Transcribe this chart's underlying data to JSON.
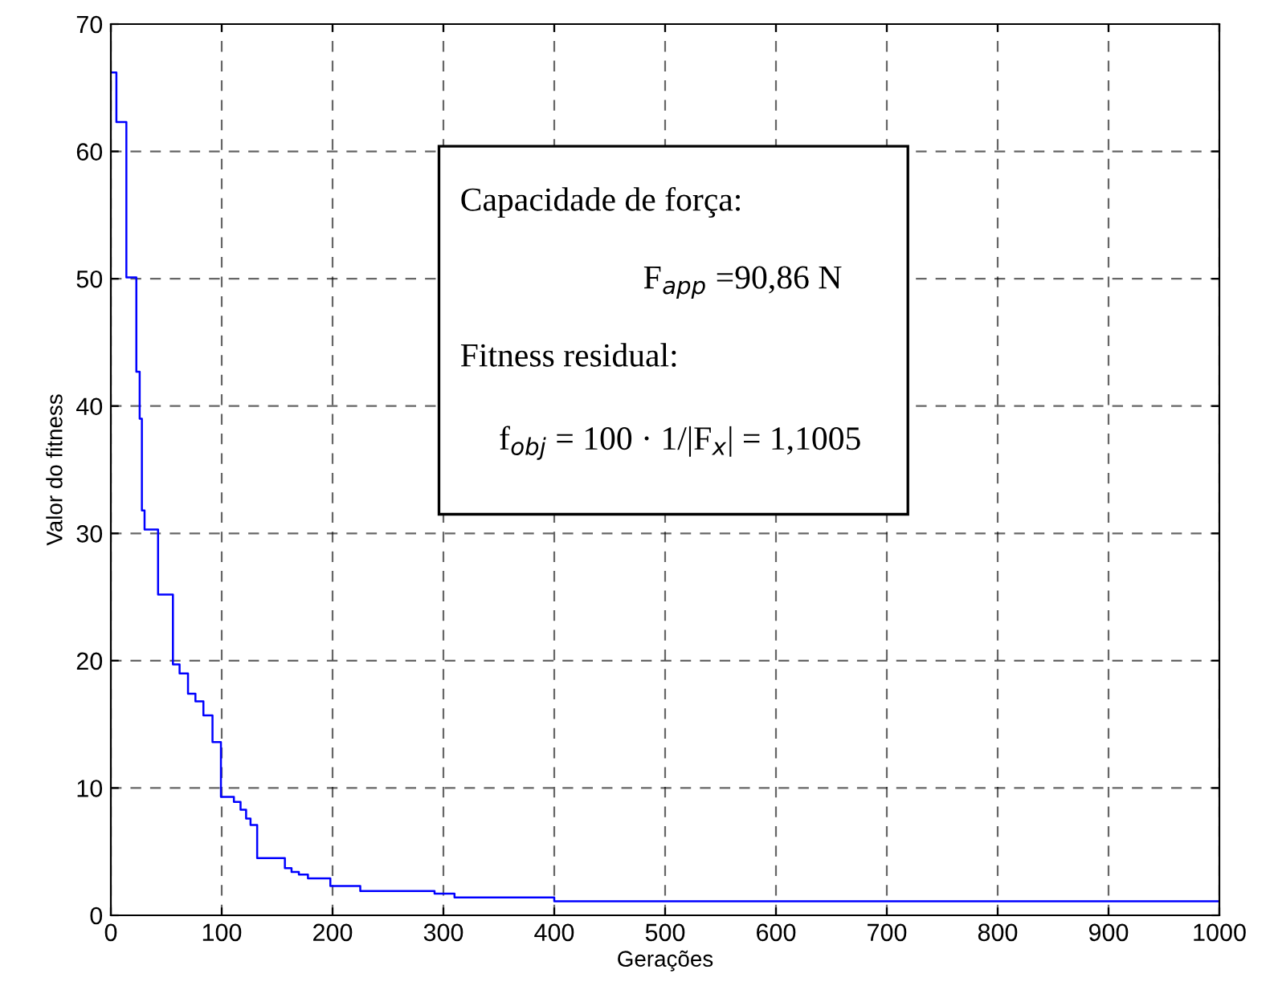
{
  "chart_data": {
    "type": "step",
    "xlabel": "Gerações",
    "ylabel": "Valor do fitness",
    "xlim": [
      0,
      1000
    ],
    "ylim": [
      0,
      70
    ],
    "xticks": [
      0,
      100,
      200,
      300,
      400,
      500,
      600,
      700,
      800,
      900,
      1000
    ],
    "yticks": [
      0,
      10,
      20,
      30,
      40,
      50,
      60,
      70
    ],
    "grid": true,
    "line_style": "solid",
    "marker": "none",
    "series": [
      {
        "color": "#0000ff",
        "x": [
          1.5,
          5,
          11,
          14,
          22,
          23,
          26,
          28,
          30.4,
          41.6,
          42.6,
          56,
          62,
          69.6,
          76.3,
          83.5,
          91.7,
          99.3,
          111,
          117,
          122,
          126,
          132,
          157,
          163,
          169.6,
          177.8,
          198,
          225,
          292,
          310,
          400,
          1000
        ],
        "values": [
          66.2,
          62.3,
          62.3,
          50.1,
          50.1,
          42.7,
          39,
          31.8,
          30.3,
          30.3,
          25.2,
          19.7,
          19.0,
          17.4,
          16.8,
          15.7,
          13.6,
          9.3,
          8.9,
          8.3,
          7.6,
          7.1,
          4.5,
          3.7,
          3.4,
          3.2,
          2.9,
          2.3,
          1.9,
          1.7,
          1.4,
          1.1,
          1.1
        ]
      }
    ],
    "annotations": [
      "Capacidade de força:",
      "F$_{app}$ =90,86 N",
      "Fitness residual:",
      "f$_{obj}$ = 100 · 1/|F$_{x}$| = 1,1005"
    ]
  }
}
